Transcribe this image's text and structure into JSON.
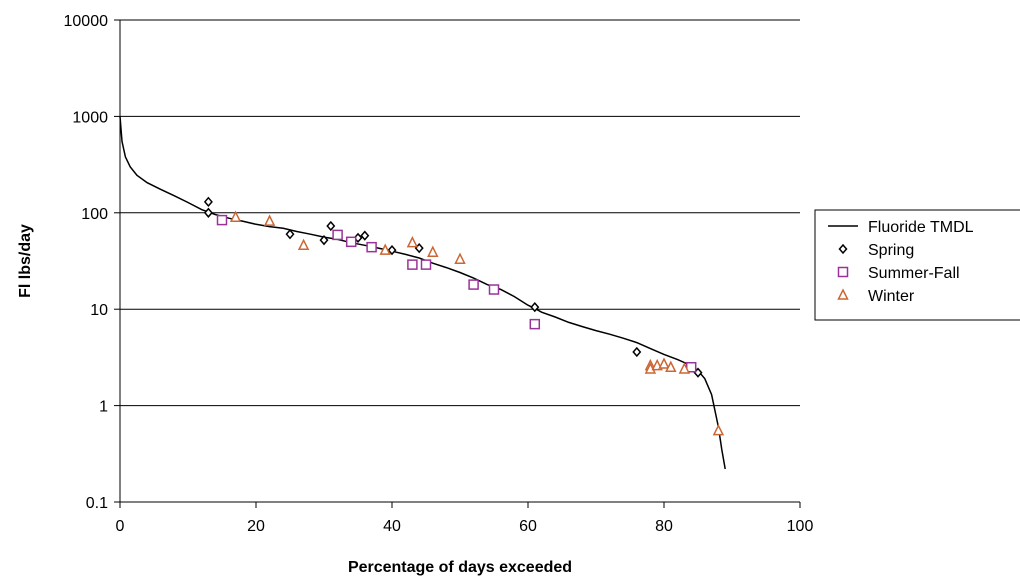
{
  "chart_data": {
    "type": "scatter",
    "xlabel": "Percentage of days exceeded",
    "ylabel": "Fl lbs/day",
    "xlim": [
      0,
      100
    ],
    "ylim": [
      0.1,
      10000
    ],
    "yscale": "log",
    "x_ticks": [
      "0",
      "20",
      "40",
      "60",
      "80",
      "100"
    ],
    "y_ticks": [
      "0.1",
      "1",
      "10",
      "100",
      "1000",
      "10000"
    ],
    "grid": "horizontal major gridlines",
    "legend_position": "right",
    "series": [
      {
        "name": "Fluoride TMDL",
        "kind": "line",
        "color": "#000000",
        "points": [
          [
            0,
            1000
          ],
          [
            0.3,
            550
          ],
          [
            0.8,
            380
          ],
          [
            1.5,
            300
          ],
          [
            2.5,
            245
          ],
          [
            4,
            205
          ],
          [
            6,
            175
          ],
          [
            8,
            150
          ],
          [
            10,
            128
          ],
          [
            12,
            108
          ],
          [
            14,
            96
          ],
          [
            16,
            88
          ],
          [
            18,
            82
          ],
          [
            20,
            76
          ],
          [
            22,
            72
          ],
          [
            24,
            69
          ],
          [
            26,
            64
          ],
          [
            28,
            60
          ],
          [
            30,
            56
          ],
          [
            32,
            53
          ],
          [
            34,
            49
          ],
          [
            36,
            46
          ],
          [
            38,
            43
          ],
          [
            40,
            40
          ],
          [
            42,
            37
          ],
          [
            44,
            34
          ],
          [
            46,
            30
          ],
          [
            48,
            27
          ],
          [
            50,
            24
          ],
          [
            52,
            21
          ],
          [
            54,
            18
          ],
          [
            56,
            16
          ],
          [
            58,
            13.5
          ],
          [
            60,
            11
          ],
          [
            61,
            10.2
          ],
          [
            62,
            9.3
          ],
          [
            64,
            8.3
          ],
          [
            66,
            7.3
          ],
          [
            68,
            6.6
          ],
          [
            70,
            6.0
          ],
          [
            72,
            5.5
          ],
          [
            74,
            5.0
          ],
          [
            76,
            4.5
          ],
          [
            78,
            3.9
          ],
          [
            80,
            3.4
          ],
          [
            82,
            3.0
          ],
          [
            84,
            2.6
          ],
          [
            85,
            2.3
          ],
          [
            86,
            1.9
          ],
          [
            87,
            1.3
          ],
          [
            88,
            0.6
          ],
          [
            88.5,
            0.35
          ],
          [
            89,
            0.22
          ]
        ]
      },
      {
        "name": "Spring",
        "kind": "marker",
        "marker": "diamond",
        "color": "#000000",
        "points": [
          [
            13,
            130
          ],
          [
            13,
            100
          ],
          [
            25,
            60
          ],
          [
            30,
            52
          ],
          [
            31,
            73
          ],
          [
            35,
            55
          ],
          [
            36,
            58
          ],
          [
            40,
            41
          ],
          [
            44,
            43
          ],
          [
            61,
            10.5
          ],
          [
            76,
            3.6
          ],
          [
            85,
            2.2
          ]
        ]
      },
      {
        "name": "Summer-Fall",
        "kind": "marker",
        "marker": "square",
        "color": "#993399",
        "points": [
          [
            15,
            84
          ],
          [
            32,
            59
          ],
          [
            34,
            50
          ],
          [
            37,
            44
          ],
          [
            43,
            29
          ],
          [
            45,
            29
          ],
          [
            52,
            18
          ],
          [
            55,
            16
          ],
          [
            61,
            7
          ],
          [
            84,
            2.5
          ]
        ]
      },
      {
        "name": "Winter",
        "kind": "marker",
        "marker": "triangle",
        "color": "#cc6633",
        "points": [
          [
            17,
            90
          ],
          [
            22,
            82
          ],
          [
            27,
            46
          ],
          [
            39,
            41
          ],
          [
            43,
            49
          ],
          [
            46,
            39
          ],
          [
            50,
            33
          ],
          [
            78,
            2.6
          ],
          [
            78,
            2.4
          ],
          [
            79,
            2.6
          ],
          [
            80,
            2.7
          ],
          [
            81,
            2.5
          ],
          [
            83,
            2.4
          ],
          [
            88,
            0.55
          ]
        ]
      }
    ]
  }
}
